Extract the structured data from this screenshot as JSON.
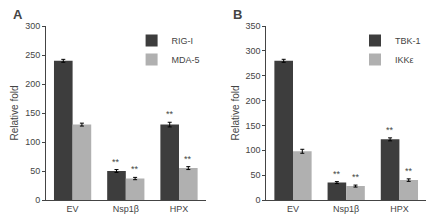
{
  "chart_data": [
    {
      "type": "bar",
      "title": "A",
      "categories": [
        "EV",
        "Nsp1β",
        "HPX"
      ],
      "series": [
        {
          "name": "RIG-I",
          "color": "#3d3d3d",
          "values": [
            240,
            50,
            130
          ],
          "errors": [
            2.5,
            2.5,
            4
          ]
        },
        {
          "name": "MDA-5",
          "color": "#b0b0b0",
          "values": [
            130,
            37,
            55
          ],
          "errors": [
            2.5,
            2,
            2.5
          ]
        }
      ],
      "annotations": [
        {
          "text": "**",
          "category": "Nsp1β",
          "series": "RIG-I"
        },
        {
          "text": "**",
          "category": "HPX",
          "series": "RIG-I"
        },
        {
          "text": "**",
          "category": "Nsp1β",
          "series": "MDA-5"
        },
        {
          "text": "**",
          "category": "HPX",
          "series": "MDA-5"
        }
      ],
      "ylabel": "Relative fold",
      "ylim": [
        0,
        300
      ],
      "yticks": [
        0,
        50,
        100,
        150,
        200,
        250,
        300
      ],
      "grid": false,
      "legend": "upper right"
    },
    {
      "type": "bar",
      "title": "B",
      "categories": [
        "EV",
        "Nsp1β",
        "HPX"
      ],
      "series": [
        {
          "name": "TBK-1",
          "color": "#3d3d3d",
          "values": [
            280,
            35,
            122
          ],
          "errors": [
            3,
            2,
            3
          ]
        },
        {
          "name": "IKKε",
          "color": "#b0b0b0",
          "values": [
            98,
            28,
            40
          ],
          "errors": [
            4,
            2,
            2.5
          ]
        }
      ],
      "annotations": [
        {
          "text": "**",
          "category": "Nsp1β",
          "series": "TBK-1"
        },
        {
          "text": "**",
          "category": "HPX",
          "series": "TBK-1"
        },
        {
          "text": "**",
          "category": "Nsp1β",
          "series": "IKKε"
        },
        {
          "text": "**",
          "category": "HPX",
          "series": "IKKε"
        }
      ],
      "ylabel": "Relative fold",
      "ylim": [
        0,
        350
      ],
      "yticks": [
        0,
        50,
        100,
        150,
        200,
        250,
        300,
        350
      ],
      "grid": false,
      "legend": "upper right"
    }
  ]
}
